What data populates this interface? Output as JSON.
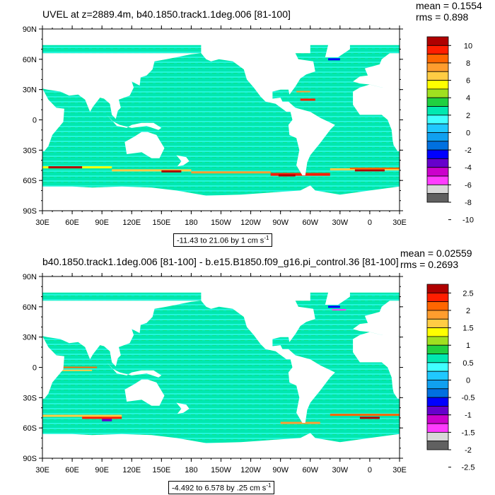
{
  "panels": [
    {
      "title": "UVEL at z=2889.4m, b40.1850.track1.1deg.006 [81-100]",
      "mean_text": "mean = 0.1554",
      "rms_text": "rms = 0.898",
      "range_text": "-11.43 to 21.06 by 1 cm s",
      "range_exp": "-1",
      "colorbar_labels": [
        "10",
        "8",
        "6",
        "4",
        "2",
        "0",
        "-2",
        "-4",
        "-6",
        "-8",
        "-10"
      ]
    },
    {
      "title": "b40.1850.track1.1deg.006 [81-100] - b.e15.B1850.f09_g16.pi_control.36 [81-100]",
      "mean_text": "mean = 0.02559",
      "rms_text": "rms = 0.2693",
      "range_text": "-4.492 to 6.578 by .25 cm s",
      "range_exp": "-1",
      "colorbar_labels": [
        "2.5",
        "2",
        "1.5",
        "1",
        "0.5",
        "0",
        "-0.5",
        "-1",
        "-1.5",
        "-2",
        "-2.5"
      ]
    }
  ],
  "chart_data": [
    {
      "type": "heatmap",
      "title": "UVEL at z=2889.4m, b40.1850.track1.1deg.006 [81-100]",
      "x_tick_labels": [
        "30E",
        "60E",
        "90E",
        "120E",
        "150E",
        "180",
        "150W",
        "120W",
        "90W",
        "60W",
        "30W",
        "0",
        "30E"
      ],
      "y_tick_labels": [
        "90N",
        "60N",
        "30N",
        "0",
        "30S",
        "60S",
        "90S"
      ],
      "xlim": [
        30,
        390
      ],
      "ylim": [
        -90,
        90
      ],
      "colorbar_levels": [
        10,
        8,
        6,
        4,
        2,
        0,
        -2,
        -4,
        -6,
        -8,
        -10
      ],
      "colorbar_colors": [
        "#b00000",
        "#ff1e00",
        "#ff6600",
        "#ff9d2e",
        "#ffcc44",
        "#ffff00",
        "#a0e020",
        "#20d040",
        "#00e8b0",
        "#40ffff",
        "#20c8ff",
        "#10a0f0",
        "#0070e0",
        "#0000ff",
        "#6600cc",
        "#cc00cc",
        "#ff3cff",
        "#d8d8d8",
        "#606060"
      ],
      "mean": 0.1554,
      "rms": 0.898,
      "contour_range": "-11.43 to 21.06 by 1 cm s-1"
    },
    {
      "type": "heatmap",
      "title": "b40.1850.track1.1deg.006 [81-100] - b.e15.B1850.f09_g16.pi_control.36 [81-100]",
      "x_tick_labels": [
        "30E",
        "60E",
        "90E",
        "120E",
        "150E",
        "180",
        "150W",
        "120W",
        "90W",
        "60W",
        "30W",
        "0",
        "30E"
      ],
      "y_tick_labels": [
        "90N",
        "60N",
        "30N",
        "0",
        "30S",
        "60S",
        "90S"
      ],
      "xlim": [
        30,
        390
      ],
      "ylim": [
        -90,
        90
      ],
      "colorbar_levels": [
        2.5,
        2,
        1.5,
        1,
        0.5,
        0,
        -0.5,
        -1,
        -1.5,
        -2,
        -2.5
      ],
      "colorbar_colors": [
        "#b00000",
        "#ff1e00",
        "#ff6600",
        "#ff9d2e",
        "#ffcc44",
        "#ffff00",
        "#a0e020",
        "#20d040",
        "#00e8b0",
        "#40ffff",
        "#20c8ff",
        "#10a0f0",
        "#0070e0",
        "#0000ff",
        "#6600cc",
        "#cc00cc",
        "#ff3cff",
        "#d8d8d8",
        "#606060"
      ],
      "mean": 0.02559,
      "rms": 0.2693,
      "contour_range": "-4.492 to 6.578 by .25 cm s-1"
    }
  ]
}
